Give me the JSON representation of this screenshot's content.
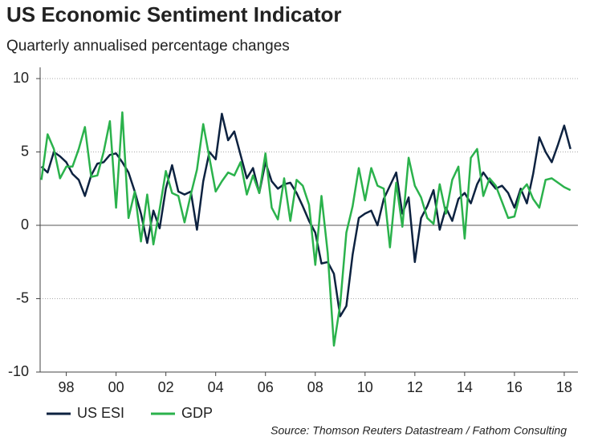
{
  "chart_data": {
    "type": "line",
    "title": "US Economic Sentiment Indicator",
    "subtitle": "Quarterly annualised percentage changes",
    "source": "Source: Thomson Reuters Datastream / Fathom Consulting",
    "x": [
      1997,
      1997.25,
      1997.5,
      1997.75,
      1998,
      1998.25,
      1998.5,
      1998.75,
      1999,
      1999.25,
      1999.5,
      1999.75,
      2000,
      2000.25,
      2000.5,
      2000.75,
      2001,
      2001.25,
      2001.5,
      2001.75,
      2002,
      2002.25,
      2002.5,
      2002.75,
      2003,
      2003.25,
      2003.5,
      2003.75,
      2004,
      2004.25,
      2004.5,
      2004.75,
      2005,
      2005.25,
      2005.5,
      2005.75,
      2006,
      2006.25,
      2006.5,
      2006.75,
      2007,
      2007.25,
      2007.5,
      2007.75,
      2008,
      2008.25,
      2008.5,
      2008.75,
      2009,
      2009.25,
      2009.5,
      2009.75,
      2010,
      2010.25,
      2010.5,
      2010.75,
      2011,
      2011.25,
      2011.5,
      2011.75,
      2012,
      2012.25,
      2012.5,
      2012.75,
      2013,
      2013.25,
      2013.5,
      2013.75,
      2014,
      2014.25,
      2014.5,
      2014.75,
      2015,
      2015.25,
      2015.5,
      2015.75,
      2016,
      2016.25,
      2016.5,
      2016.75,
      2017,
      2017.25,
      2017.5,
      2017.75,
      2018,
      2018.25
    ],
    "series": [
      {
        "name": "US ESI",
        "color": "#0d2240",
        "values": [
          4.0,
          3.6,
          5.0,
          4.7,
          4.3,
          3.5,
          3.1,
          2.0,
          3.4,
          4.2,
          4.3,
          4.8,
          4.9,
          4.3,
          3.6,
          2.3,
          0.8,
          -1.2,
          1.0,
          -0.2,
          2.5,
          4.1,
          2.3,
          2.1,
          2.3,
          -0.3,
          3.0,
          5.0,
          4.5,
          7.6,
          5.8,
          6.4,
          4.8,
          3.2,
          3.9,
          2.2,
          4.3,
          3.0,
          2.5,
          2.8,
          2.9,
          2.2,
          1.3,
          0.3,
          -0.5,
          -2.6,
          -2.5,
          -3.3,
          -6.2,
          -5.5,
          -2.0,
          0.5,
          0.8,
          1.0,
          0.0,
          1.8,
          2.7,
          3.6,
          0.8,
          1.9,
          -2.5,
          0.5,
          1.3,
          2.4,
          -0.3,
          1.2,
          0.3,
          1.8,
          2.2,
          1.5,
          2.8,
          3.6,
          3.0,
          2.5,
          2.7,
          2.2,
          1.2,
          2.5,
          1.5,
          3.5,
          6.0,
          5.0,
          4.3,
          5.5,
          6.8,
          5.2
        ]
      },
      {
        "name": "GDP",
        "color": "#2bb24c",
        "values": [
          3.1,
          6.2,
          5.2,
          3.2,
          4.0,
          4.0,
          5.2,
          6.7,
          3.3,
          3.4,
          5.0,
          7.1,
          1.2,
          7.7,
          0.5,
          2.3,
          -1.1,
          2.1,
          -1.3,
          1.1,
          3.7,
          2.2,
          2.0,
          0.2,
          2.1,
          3.8,
          6.9,
          4.6,
          2.3,
          3.0,
          3.6,
          3.4,
          4.3,
          2.1,
          3.4,
          2.2,
          4.9,
          1.2,
          0.4,
          3.2,
          0.3,
          3.1,
          2.7,
          1.4,
          -2.7,
          2.0,
          -1.9,
          -8.2,
          -5.4,
          -0.5,
          1.3,
          3.9,
          1.7,
          3.9,
          2.7,
          2.5,
          -1.5,
          2.9,
          -0.1,
          4.6,
          2.7,
          1.9,
          0.5,
          0.1,
          2.8,
          0.8,
          3.1,
          4.0,
          -0.9,
          4.6,
          5.2,
          2.0,
          3.2,
          2.7,
          1.6,
          0.5,
          0.6,
          2.3,
          2.8,
          1.8,
          1.2,
          3.1,
          3.2,
          2.9,
          2.6,
          2.4
        ]
      }
    ],
    "xlim": [
      1996.95,
      2018.55
    ],
    "xticks": [
      {
        "value": 1998,
        "label": "98"
      },
      {
        "value": 2000,
        "label": "00"
      },
      {
        "value": 2002,
        "label": "02"
      },
      {
        "value": 2004,
        "label": "04"
      },
      {
        "value": 2006,
        "label": "06"
      },
      {
        "value": 2008,
        "label": "08"
      },
      {
        "value": 2010,
        "label": "10"
      },
      {
        "value": 2012,
        "label": "12"
      },
      {
        "value": 2014,
        "label": "14"
      },
      {
        "value": 2016,
        "label": "16"
      },
      {
        "value": 2018,
        "label": "18"
      }
    ],
    "ylim": [
      -10,
      10
    ],
    "yticks": [
      -10,
      -5,
      0,
      5,
      10
    ],
    "grid": true,
    "legend": "bottom-left"
  }
}
